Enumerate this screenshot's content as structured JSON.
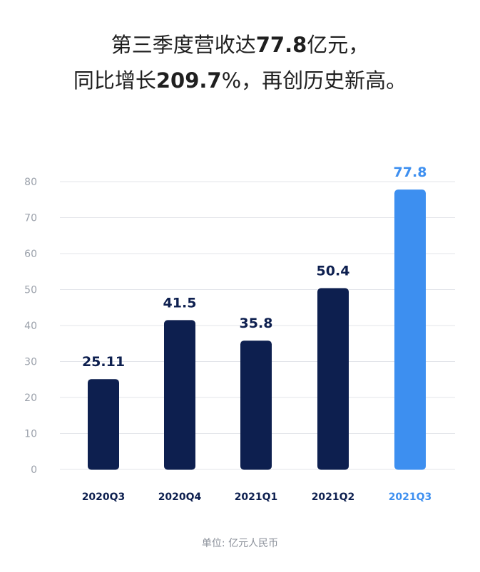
{
  "headline": {
    "line1_pre": "第三季度营收达",
    "line1_num": "77.8",
    "line1_post": "亿元，",
    "line2_pre": "同比增长",
    "line2_num": "209.7",
    "line2_post": "%，再创历史新高。"
  },
  "unit_note": "单位: 亿元人民币",
  "colors": {
    "bar_default": "#0d1f4f",
    "bar_highlight": "#3d8ff0",
    "label_default": "#0d1f4f",
    "label_highlight": "#3d8ff0",
    "grid": "#e3e5ea",
    "tick": "#9aa0aa"
  },
  "chart_data": {
    "type": "bar",
    "categories": [
      "2020Q3",
      "2020Q4",
      "2021Q1",
      "2021Q2",
      "2021Q3"
    ],
    "values": [
      25.11,
      41.5,
      35.8,
      50.4,
      77.8
    ],
    "value_labels": [
      "25.11",
      "41.5",
      "35.8",
      "50.4",
      "77.8"
    ],
    "highlight_index": 4,
    "ylim": [
      0,
      80
    ],
    "yticks": [
      0,
      10,
      20,
      30,
      40,
      50,
      60,
      70,
      80
    ],
    "grid": true,
    "title": "",
    "xlabel": "",
    "ylabel": ""
  }
}
